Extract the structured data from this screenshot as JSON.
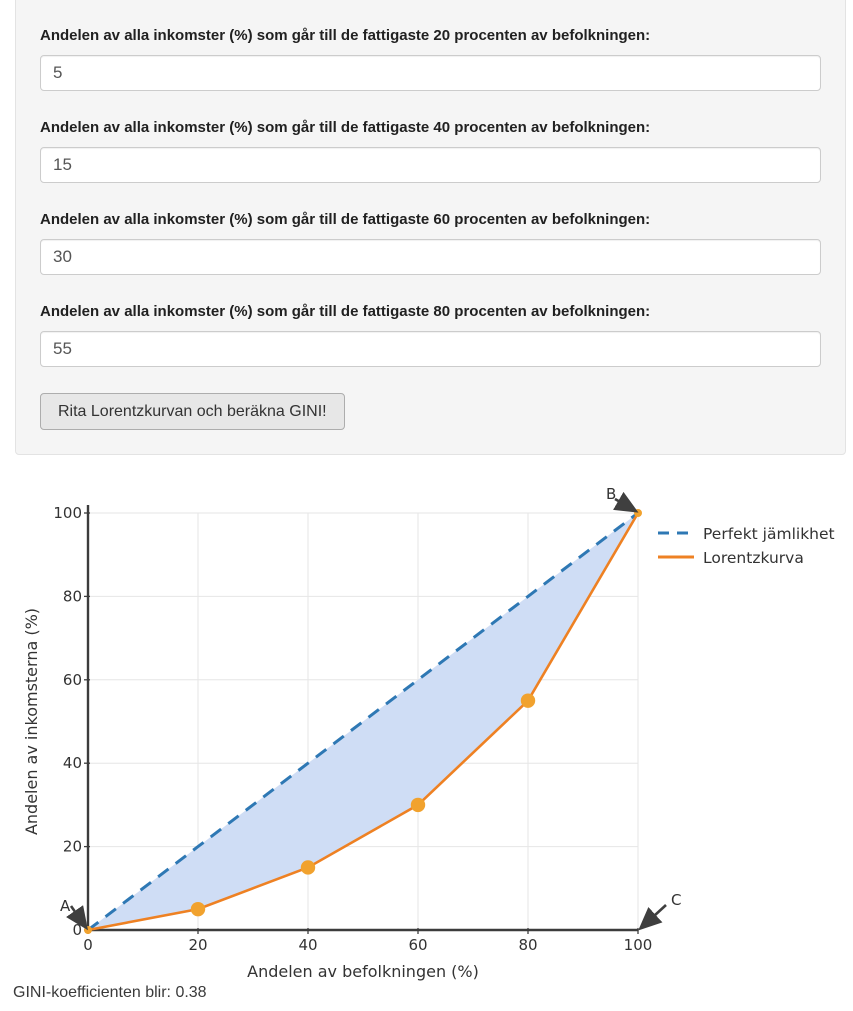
{
  "form": {
    "fields": [
      {
        "label": "Andelen av alla inkomster (%) som går till de fattigaste 20 procenten av befolkningen:",
        "value": "5"
      },
      {
        "label": "Andelen av alla inkomster (%) som går till de fattigaste 40 procenten av befolkningen:",
        "value": "15"
      },
      {
        "label": "Andelen av alla inkomster (%) som går till de fattigaste 60 procenten av befolkningen:",
        "value": "30"
      },
      {
        "label": "Andelen av alla inkomster (%) som går till de fattigaste 80 procenten av befolkningen:",
        "value": "55"
      }
    ],
    "button_label": "Rita Lorentzkurvan och beräkna GINI!"
  },
  "result_text": "GINI-koefficienten blir: 0.38",
  "chart_data": {
    "type": "line",
    "x": [
      0,
      20,
      40,
      60,
      80,
      100
    ],
    "series": [
      {
        "name": "Perfekt jämlikhet",
        "values": [
          0,
          20,
          40,
          60,
          80,
          100
        ],
        "color": "#2e78b4",
        "style": "dashed"
      },
      {
        "name": "Lorentzkurva",
        "values": [
          0,
          5,
          15,
          30,
          55,
          100
        ],
        "color": "#ee8123",
        "style": "solid",
        "marker_color": "#f1a22e"
      }
    ],
    "xlabel": "Andelen av befolkningen (%)",
    "ylabel": "Andelen av inkomsterna (%)",
    "xlim": [
      0,
      100
    ],
    "ylim": [
      0,
      100
    ],
    "xticks": [
      0,
      20,
      40,
      60,
      80,
      100
    ],
    "yticks": [
      0,
      20,
      40,
      60,
      80,
      100
    ],
    "grid": true,
    "legend_position": "top-right-outside",
    "fill_between": {
      "series_a": "Perfekt jämlikhet",
      "series_b": "Lorentzkurva",
      "color": "#cfddf5"
    },
    "annotations": [
      {
        "text": "A",
        "x": 0,
        "y": 0
      },
      {
        "text": "B",
        "x": 100,
        "y": 100
      },
      {
        "text": "C",
        "x": 100,
        "y": 0
      }
    ],
    "colors": {
      "axis": "#3c3c3c",
      "grid": "#e6e6e6",
      "tick_text": "#333333",
      "annotation": "#3f3f3f"
    }
  }
}
